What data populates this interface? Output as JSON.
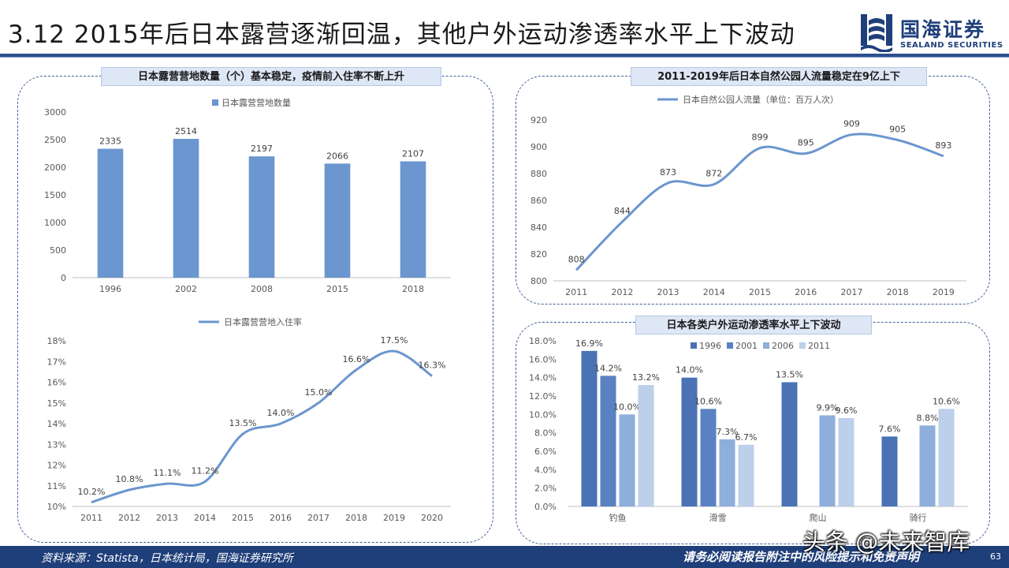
{
  "header": {
    "title": "3.12 2015年后日本露营逐渐回温，其他户外运动渗透率水平上下波动",
    "logo_cn": "国海证券",
    "logo_en": "SEALAND SECURITIES",
    "brand_color": "#1f3f7a"
  },
  "panels": {
    "left_tag": "日本露营营地数量（个）基本稳定，疫情前入住率不断上升",
    "right_top_tag": "2011-2019年后日本自然公园人流量稳定在9亿上下",
    "right_bottom_tag": "日本各类户外运动渗透率水平上下波动"
  },
  "chart_data": [
    {
      "id": "campsites",
      "type": "bar",
      "title": "",
      "legend": "日本露营营地数量",
      "legend_position": "top",
      "categories": [
        "1996",
        "2002",
        "2008",
        "2015",
        "2018"
      ],
      "values": [
        2335,
        2514,
        2197,
        2066,
        2107
      ],
      "y_ticks": [
        "0",
        "500",
        "1000",
        "1500",
        "2000",
        "2500",
        "3000"
      ],
      "ylim": [
        0,
        3000
      ],
      "color": "#6b96cf",
      "grid": false
    },
    {
      "id": "occupancy",
      "type": "line",
      "title": "",
      "legend": "日本露营营地入住率",
      "legend_position": "top",
      "x": [
        "2011",
        "2012",
        "2013",
        "2014",
        "2015",
        "2016",
        "2017",
        "2018",
        "2019",
        "2020"
      ],
      "values": [
        10.2,
        10.8,
        11.1,
        11.2,
        13.5,
        14.0,
        15.0,
        16.6,
        17.5,
        16.3
      ],
      "labels": [
        "10.2%",
        "10.8%",
        "11.1%",
        "11.2%",
        "13.5%",
        "14.0%",
        "15.0%",
        "16.6%",
        "17.5%",
        "16.3%"
      ],
      "y_ticks": [
        "10%",
        "11%",
        "12%",
        "13%",
        "14%",
        "15%",
        "16%",
        "17%",
        "18%"
      ],
      "ylim": [
        10,
        18
      ],
      "color": "#6b96cf",
      "grid": false
    },
    {
      "id": "park_visitors",
      "type": "line",
      "title": "",
      "legend": "日本自然公园人流量（单位：百万人次）",
      "legend_position": "top",
      "x": [
        "2011",
        "2012",
        "2013",
        "2014",
        "2015",
        "2016",
        "2017",
        "2018",
        "2019"
      ],
      "values": [
        808,
        844,
        873,
        872,
        899,
        895,
        909,
        905,
        893
      ],
      "labels": [
        "808",
        "844",
        "873",
        "872",
        "899",
        "895",
        "909",
        "905",
        "893"
      ],
      "y_ticks": [
        "800",
        "820",
        "840",
        "860",
        "880",
        "900",
        "920"
      ],
      "ylim": [
        800,
        920
      ],
      "color": "#6b96cf",
      "grid": false
    },
    {
      "id": "penetration",
      "type": "bar",
      "title": "",
      "legend_position": "top",
      "categories": [
        "钓鱼",
        "滑雪",
        "爬山",
        "骑行"
      ],
      "series": [
        {
          "name": "1996",
          "color": "#4a72b5",
          "values": [
            16.9,
            14.0,
            13.5,
            7.6
          ],
          "labels": [
            "16.9%",
            "14.0%",
            "13.5%",
            "7.6%"
          ]
        },
        {
          "name": "2001",
          "color": "#5a82c2",
          "values": [
            14.2,
            10.6,
            null,
            null
          ],
          "labels": [
            "14.2%",
            "10.6%",
            "",
            ""
          ]
        },
        {
          "name": "2006",
          "color": "#8eaedb",
          "values": [
            10.0,
            7.3,
            9.9,
            8.8
          ],
          "labels": [
            "10.0%",
            "7.3%",
            "9.9%",
            "8.8%"
          ]
        },
        {
          "name": "2011",
          "color": "#bccfeb",
          "values": [
            13.2,
            6.7,
            9.6,
            10.6
          ],
          "labels": [
            "13.2%",
            "6.7%",
            "9.6%",
            "10.6%"
          ]
        }
      ],
      "y_ticks": [
        "0.0%",
        "2.0%",
        "4.0%",
        "6.0%",
        "8.0%",
        "10.0%",
        "12.0%",
        "14.0%",
        "16.0%",
        "18.0%"
      ],
      "ylim": [
        0,
        18
      ],
      "grid": false
    }
  ],
  "footer": {
    "source": "资料来源：Statista，日本统计局，国海证券研究所",
    "disclaimer": "请务必阅读报告附注中的风险提示和免责声明",
    "page": "63",
    "watermark": "头条 @未来智库"
  }
}
